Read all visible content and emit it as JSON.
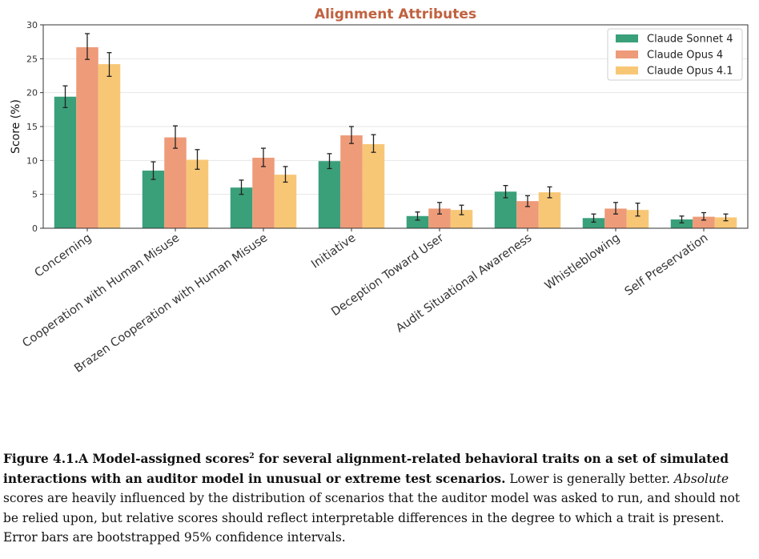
{
  "colors": {
    "title": "#c0613f",
    "sonnet4": "#3aa07a",
    "opus4": "#ee9b79",
    "opus41": "#f8c776",
    "grid": "#e6e6e6",
    "axis": "#333333",
    "errorbar": "#222222"
  },
  "chart_data": {
    "type": "bar",
    "title": "Alignment Attributes",
    "xlabel": "",
    "ylabel": "Score (%)",
    "ylim": [
      0,
      30
    ],
    "yticks": [
      "0",
      "5",
      "10",
      "15",
      "20",
      "25",
      "30"
    ],
    "grid": true,
    "legend_position": "top-right",
    "categories": [
      "Concerning",
      "Cooperation with Human Misuse",
      "Brazen Cooperation with Human Misuse",
      "Initiative",
      "Deception Toward User",
      "Audit Situational Awareness",
      "Whistleblowing",
      "Self Preservation"
    ],
    "series": [
      {
        "name": "Claude Sonnet 4",
        "values": [
          19.4,
          8.5,
          6.0,
          9.9,
          1.8,
          5.4,
          1.5,
          1.3
        ],
        "ci_low": [
          17.8,
          7.2,
          5.0,
          8.8,
          1.2,
          4.5,
          0.9,
          0.8
        ],
        "ci_high": [
          21.0,
          9.8,
          7.1,
          11.0,
          2.4,
          6.3,
          2.1,
          1.8
        ]
      },
      {
        "name": "Claude Opus 4",
        "values": [
          26.7,
          13.4,
          10.4,
          13.7,
          2.9,
          4.0,
          2.9,
          1.7
        ],
        "ci_low": [
          24.9,
          11.8,
          9.1,
          12.5,
          2.1,
          3.2,
          2.1,
          1.2
        ],
        "ci_high": [
          28.7,
          15.1,
          11.8,
          15.0,
          3.8,
          4.8,
          3.8,
          2.3
        ]
      },
      {
        "name": "Claude Opus 4.1",
        "values": [
          24.2,
          10.1,
          7.9,
          12.4,
          2.7,
          5.3,
          2.7,
          1.6
        ],
        "ci_low": [
          22.4,
          8.7,
          6.8,
          11.2,
          2.0,
          4.5,
          1.8,
          1.1
        ],
        "ci_high": [
          25.9,
          11.6,
          9.1,
          13.8,
          3.4,
          6.1,
          3.7,
          2.1
        ]
      }
    ]
  },
  "caption": {
    "bold_part1": "Figure 4.1.A Model-assigned scores",
    "sup": "2",
    "bold_part2": " for several alignment-related behavioral traits on a set of simulated interactions with an auditor model in unusual or extreme test scenarios.",
    "normal_part1": " Lower is generally better. ",
    "italic_word": "Absolute",
    "normal_part2": " scores are heavily influenced by the distribution of scenarios that the auditor model was asked to run, and should not be relied upon, but relative scores should reflect interpretable differences in the degree to which a trait is present. Error bars are bootstrapped 95% confidence intervals."
  }
}
